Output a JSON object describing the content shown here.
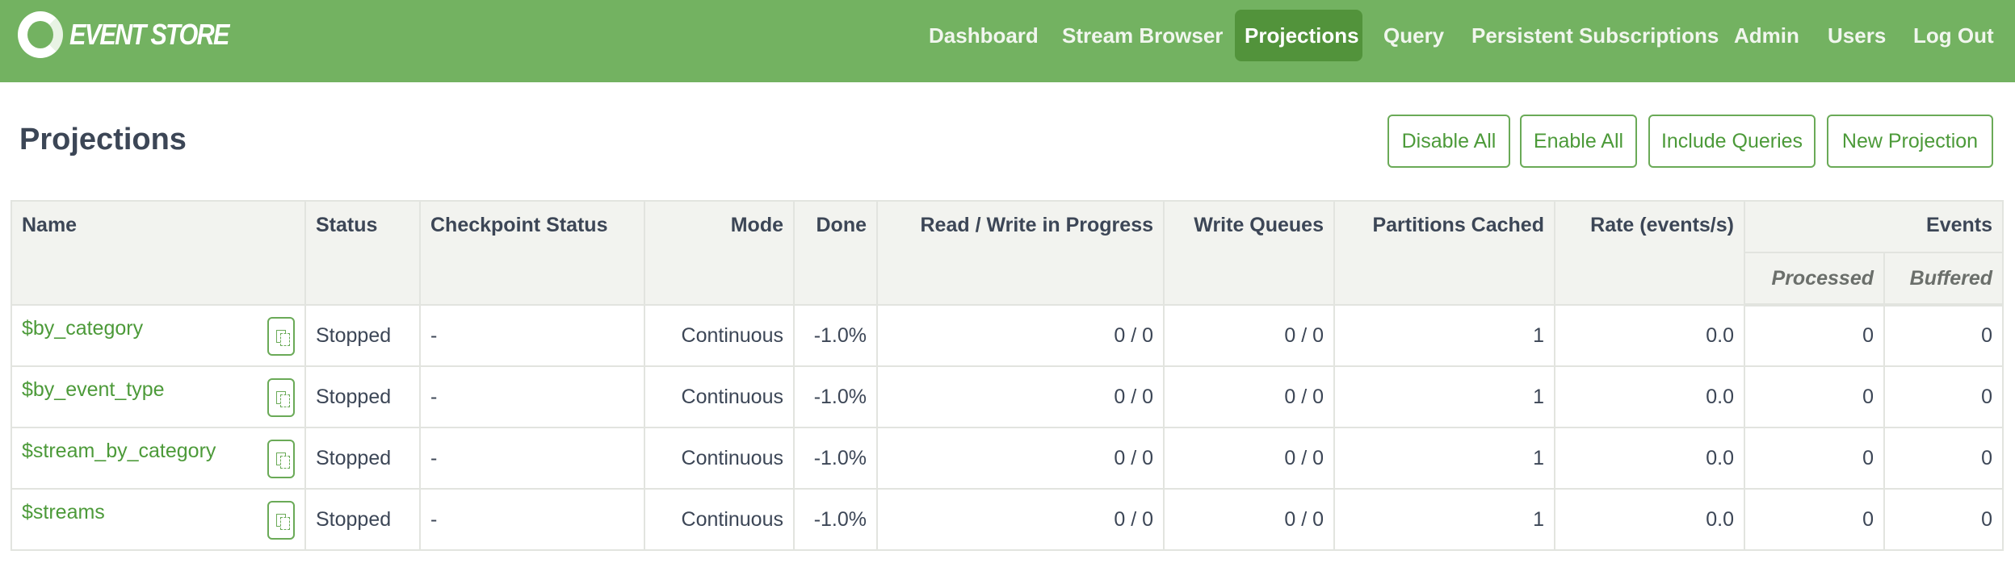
{
  "brand": {
    "name": "EVENT STORE",
    "color": "#73b261"
  },
  "nav": {
    "items": [
      {
        "label": "Dashboard"
      },
      {
        "label": "Stream Browser"
      },
      {
        "label": "Projections",
        "active": true
      },
      {
        "label": "Query"
      },
      {
        "label": "Persistent Subscriptions"
      },
      {
        "label": "Admin"
      },
      {
        "label": "Users"
      },
      {
        "label": "Log Out"
      }
    ]
  },
  "page": {
    "title": "Projections"
  },
  "actions": {
    "disable_all": "Disable All",
    "enable_all": "Enable All",
    "include_queries": "Include Queries",
    "new_projection": "New Projection"
  },
  "table": {
    "headers": {
      "name": "Name",
      "status": "Status",
      "checkpoint": "Checkpoint Status",
      "mode": "Mode",
      "done": "Done",
      "rw": "Read / Write in Progress",
      "wq": "Write Queues",
      "partitions": "Partitions Cached",
      "rate": "Rate (events/s)",
      "events": "Events",
      "processed": "Processed",
      "buffered": "Buffered"
    },
    "rows": [
      {
        "name": "$by_category",
        "status": "Stopped",
        "checkpoint": "-",
        "mode": "Continuous",
        "done": "-1.0%",
        "rw": "0 / 0",
        "wq": "0 / 0",
        "partitions": "1",
        "rate": "0.0",
        "processed": "0",
        "buffered": "0"
      },
      {
        "name": "$by_event_type",
        "status": "Stopped",
        "checkpoint": "-",
        "mode": "Continuous",
        "done": "-1.0%",
        "rw": "0 / 0",
        "wq": "0 / 0",
        "partitions": "1",
        "rate": "0.0",
        "processed": "0",
        "buffered": "0"
      },
      {
        "name": "$stream_by_category",
        "status": "Stopped",
        "checkpoint": "-",
        "mode": "Continuous",
        "done": "-1.0%",
        "rw": "0 / 0",
        "wq": "0 / 0",
        "partitions": "1",
        "rate": "0.0",
        "processed": "0",
        "buffered": "0"
      },
      {
        "name": "$streams",
        "status": "Stopped",
        "checkpoint": "-",
        "mode": "Continuous",
        "done": "-1.0%",
        "rw": "0 / 0",
        "wq": "0 / 0",
        "partitions": "1",
        "rate": "0.0",
        "processed": "0",
        "buffered": "0"
      }
    ]
  }
}
